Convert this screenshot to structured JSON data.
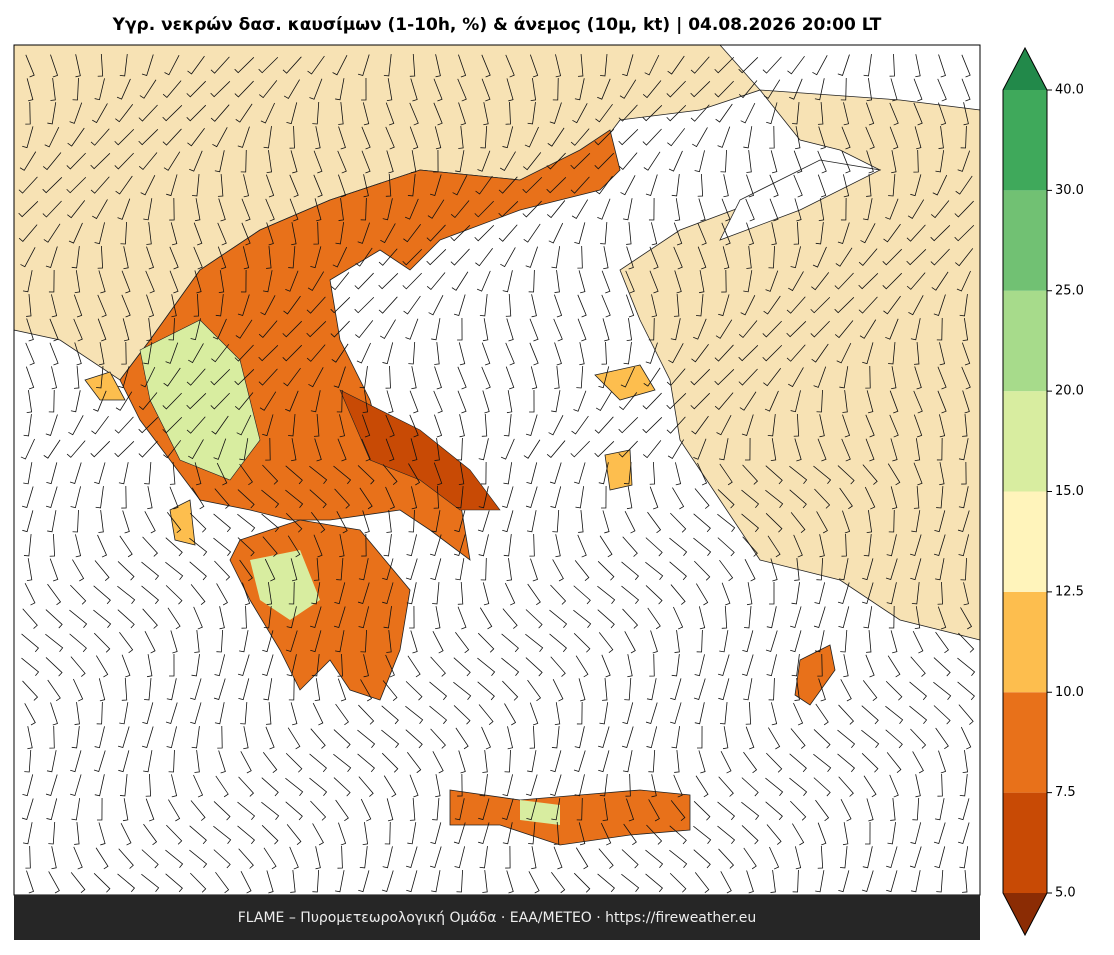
{
  "title": "Υγρ. νεκρών δασ. καυσίμων (1-10h, %) & άνεμος (10μ, kt)  |  04.08.2026 20:00 LT",
  "footer": "FLAME – Πυρομετεωρολογική Ομάδα · ΕΑΑ/METEO · https://fireweather.eu",
  "colorbar": {
    "ticks": [
      {
        "value": 5,
        "label": "5.0"
      },
      {
        "value": 7.5,
        "label": "7.5"
      },
      {
        "value": 10,
        "label": "10.0"
      },
      {
        "value": 12.5,
        "label": "12.5"
      },
      {
        "value": 15,
        "label": "15.0"
      },
      {
        "value": 20,
        "label": "20.0"
      },
      {
        "value": 25,
        "label": "25.0"
      },
      {
        "value": 30,
        "label": "30.0"
      },
      {
        "value": 40,
        "label": "40.0"
      }
    ],
    "colors": [
      "#c84a05",
      "#e8711a",
      "#fdbe4e",
      "#fff4bb",
      "#d8eda0",
      "#a7db8b",
      "#71c173",
      "#3fa95b"
    ],
    "extend_under_color": "#8b2c04",
    "extend_over_color": "#22894a"
  }
}
